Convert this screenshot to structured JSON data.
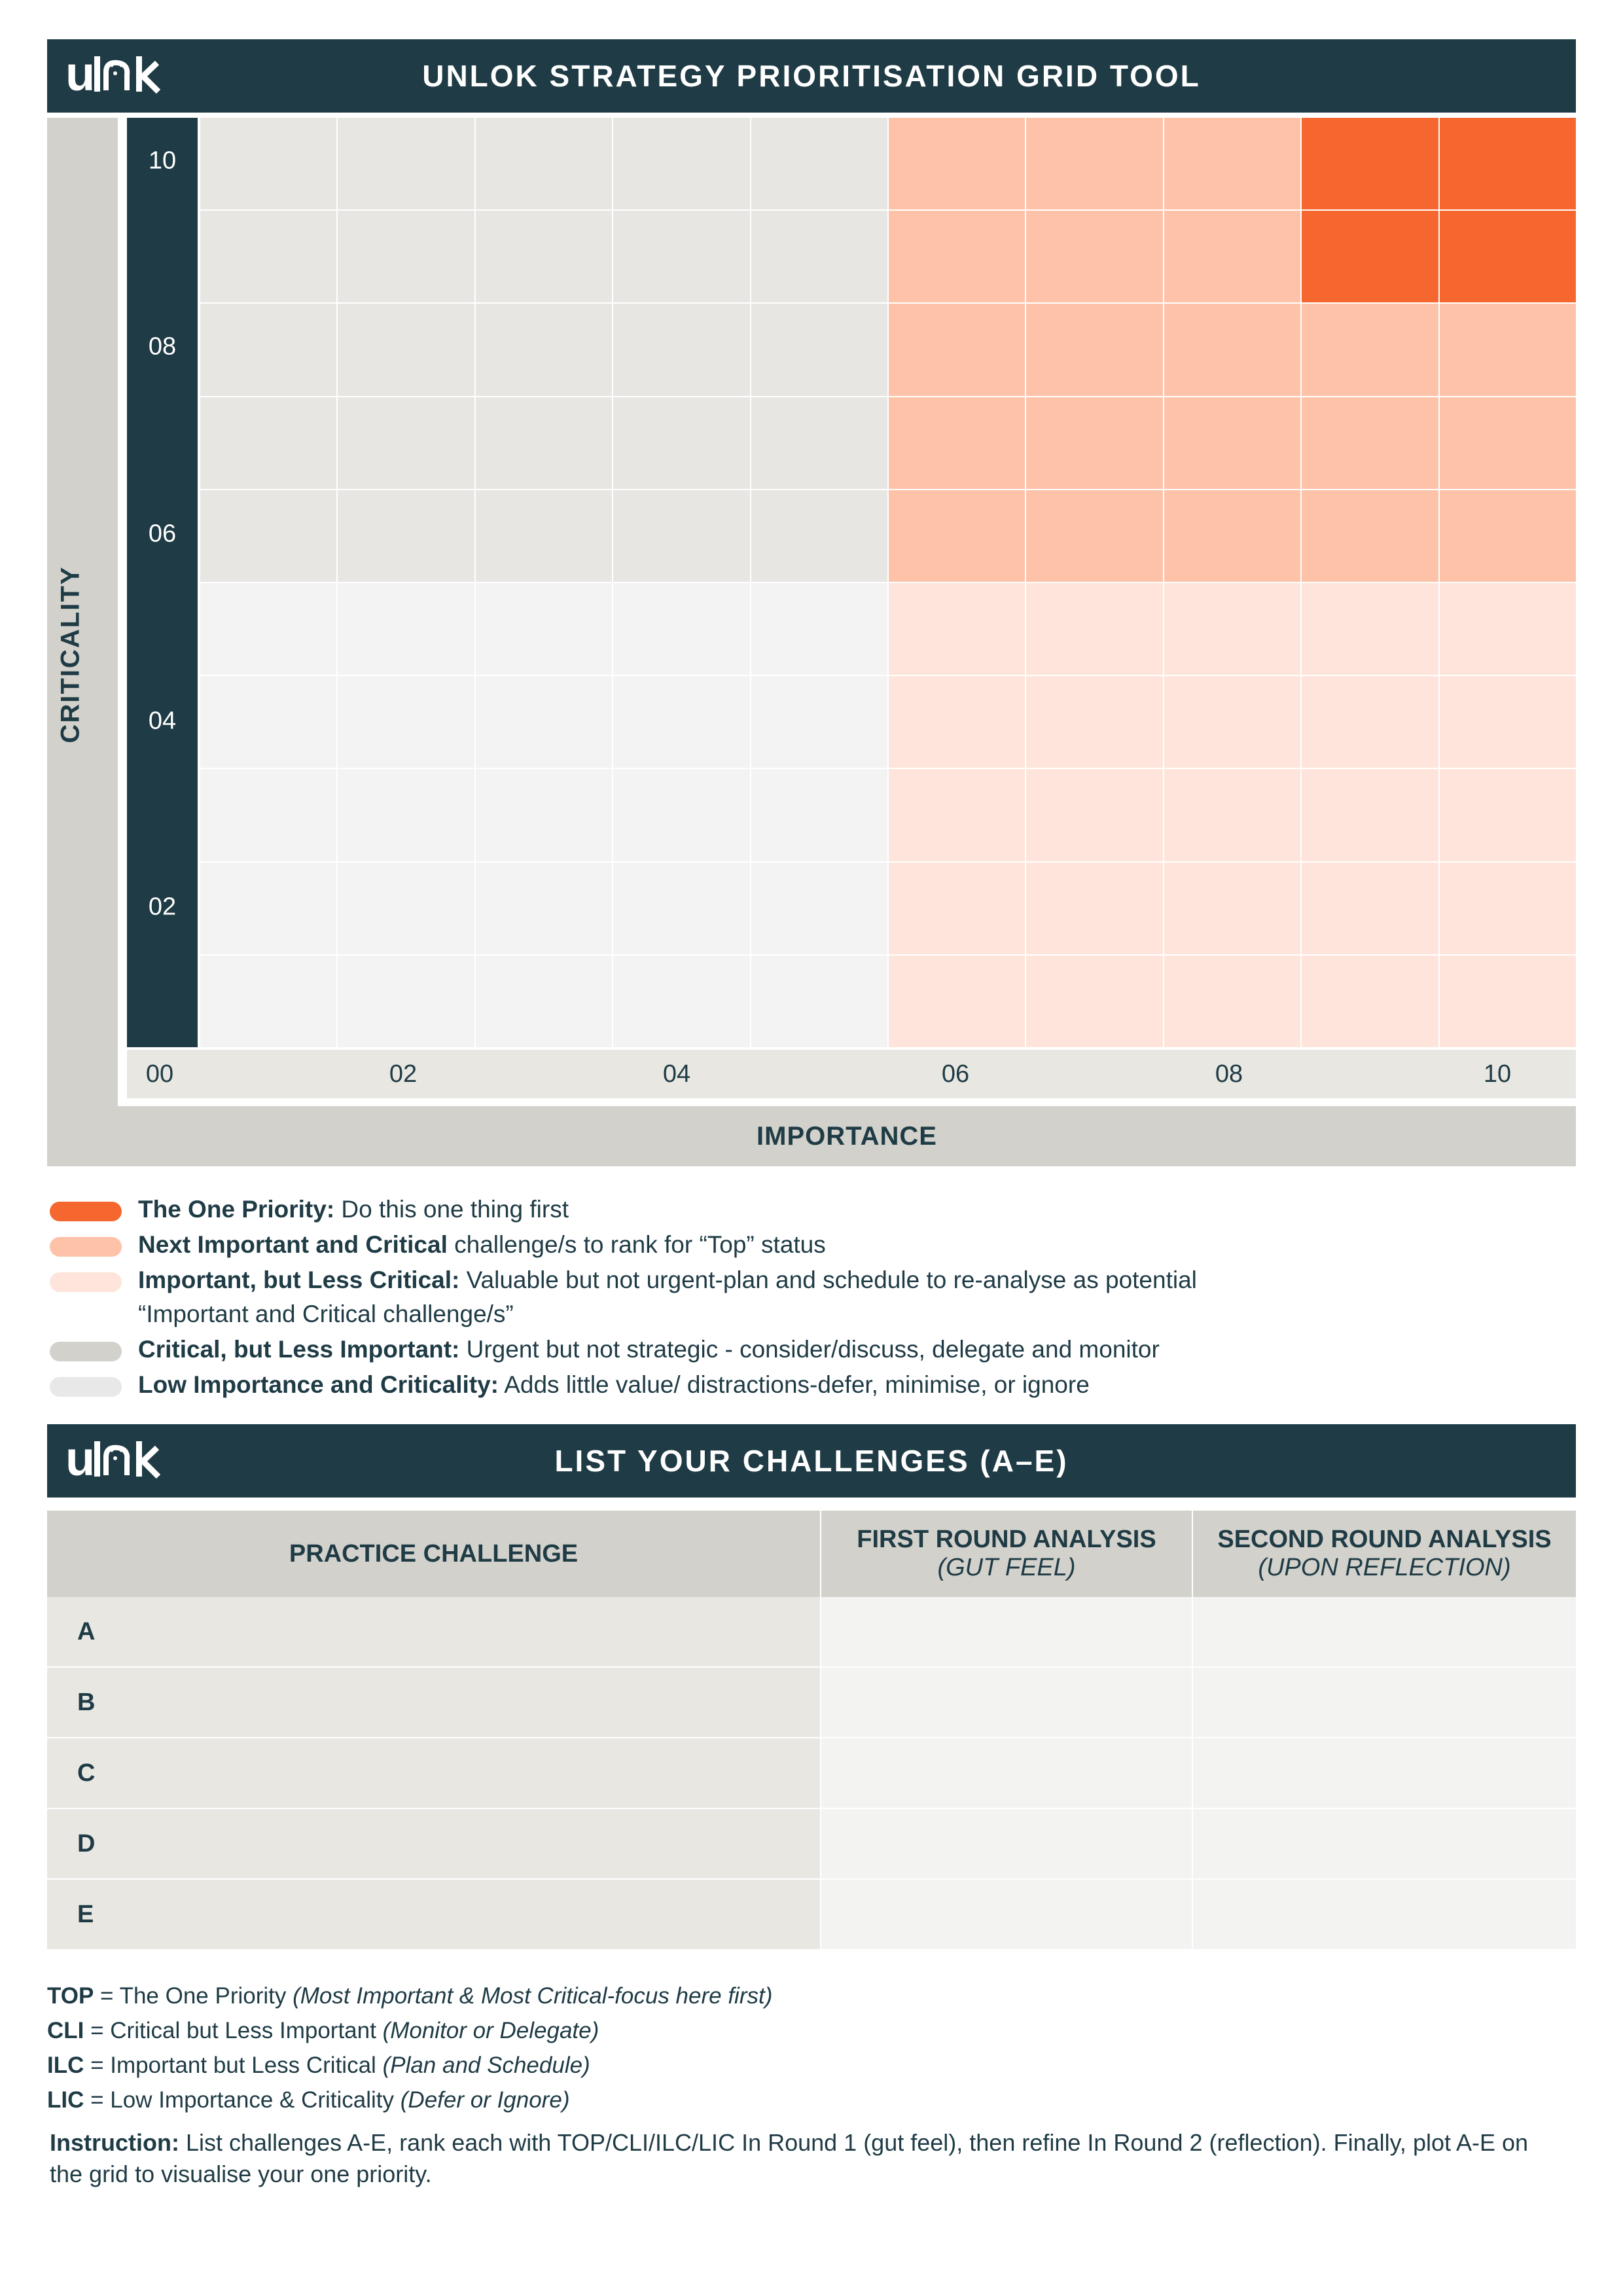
{
  "brand": {
    "logo_text": "unlok"
  },
  "grid_tool": {
    "title": "UNLOK STRATEGY PRIORITISATION GRID TOOL",
    "y_axis_label": "CRITICALITY",
    "x_axis_label": "IMPORTANCE",
    "y_ticks": [
      "10",
      "08",
      "06",
      "04",
      "02"
    ],
    "x_ticks": [
      "00",
      "02",
      "04",
      "06",
      "08",
      "10"
    ],
    "zone_colors": {
      "one_priority": "#f5672e",
      "next_important_critical": "#fec2a9",
      "important_less_critical": "#fee4da",
      "critical_less_important": "#e7e6e2",
      "low": "#f3f3f3"
    },
    "zones": [
      {
        "zone": "one_priority",
        "importance": [
          8,
          10
        ],
        "criticality": [
          8,
          10
        ]
      },
      {
        "zone": "next_important_critical",
        "importance": [
          5,
          10
        ],
        "criticality": [
          5,
          10
        ]
      },
      {
        "zone": "important_less_critical",
        "importance": [
          5,
          10
        ],
        "criticality": [
          0,
          5
        ]
      },
      {
        "zone": "critical_less_important",
        "importance": [
          0,
          5
        ],
        "criticality": [
          5,
          10
        ]
      },
      {
        "zone": "low",
        "importance": [
          0,
          5
        ],
        "criticality": [
          0,
          5
        ]
      }
    ]
  },
  "legend": [
    {
      "color": "#f5672e",
      "bold": "The One Priority:",
      "text": " Do this one thing first"
    },
    {
      "color": "#fec2a9",
      "bold": "Next Important and Critical",
      "text": " challenge/s to rank for “Top” status"
    },
    {
      "color": "#fee4da",
      "bold": "Important, but Less Critical:",
      "text": " Valuable but not urgent-plan and schedule to re-analyse as potential “Important and Critical challenge/s”"
    },
    {
      "color": "#d2d1cb",
      "bold": "Critical, but Less Important:",
      "text": " Urgent but not strategic - consider/discuss, delegate and monitor"
    },
    {
      "color": "#e8e8e8",
      "bold": "Low Importance and Criticality:",
      "text": " Adds little value/ distractions-defer, minimise, or ignore"
    }
  ],
  "challenges": {
    "title": "LIST YOUR CHALLENGES (A–E)",
    "col_challenge": "PRACTICE CHALLENGE",
    "col_first": "FIRST ROUND ANALYSIS",
    "col_first_sub": "(GUT FEEL)",
    "col_second": "SECOND ROUND ANALYSIS",
    "col_second_sub": "(UPON REFLECTION)",
    "rows": [
      "A",
      "B",
      "C",
      "D",
      "E"
    ]
  },
  "key": [
    {
      "code": "TOP",
      "text": " = The One Priority ",
      "note": "(Most Important & Most Critical-focus here first)"
    },
    {
      "code": "CLI",
      "text": " = Critical but Less Important ",
      "note": "(Monitor or Delegate)"
    },
    {
      "code": "ILC",
      "text": " = Important but Less Critical ",
      "note": "(Plan and Schedule)"
    },
    {
      "code": "LIC",
      "text": " = Low Importance & Criticality ",
      "note": "(Defer or Ignore)"
    }
  ],
  "instruction": {
    "label": "Instruction:",
    "text": " List challenges A-E, rank each with TOP/CLI/ILC/LIC In Round 1 (gut feel), then refine In Round 2 (reflection). Finally, plot A-E on the grid to visualise your one priority."
  }
}
